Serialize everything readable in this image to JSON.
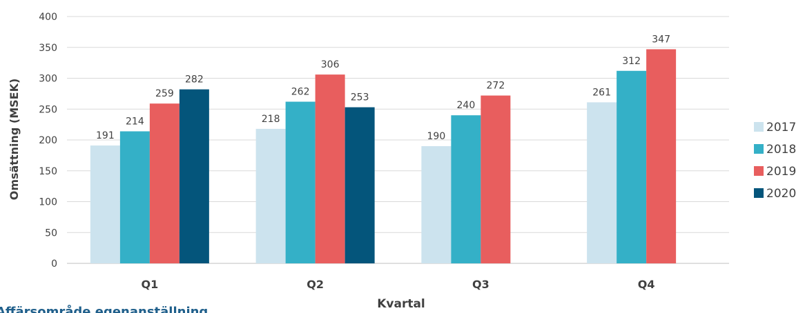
{
  "caption": "Affärsområde egenanställning",
  "chart_data": {
    "type": "bar",
    "categories": [
      "Q1",
      "Q2",
      "Q3",
      "Q4"
    ],
    "series": [
      {
        "name": "2017",
        "color": "#cce3ee",
        "values": [
          191,
          218,
          190,
          261
        ]
      },
      {
        "name": "2018",
        "color": "#34b0c7",
        "values": [
          214,
          262,
          240,
          312
        ]
      },
      {
        "name": "2019",
        "color": "#e85e5e",
        "values": [
          259,
          306,
          272,
          347
        ]
      },
      {
        "name": "2020",
        "color": "#04557b",
        "values": [
          282,
          253,
          null,
          null
        ]
      }
    ],
    "xlabel": "Kvartal",
    "ylabel": "Omsättning (MSEK)",
    "ylim": [
      0,
      400
    ],
    "yticks": [
      0,
      50,
      100,
      150,
      200,
      250,
      300,
      350,
      400
    ],
    "grid": true,
    "legend": "right"
  }
}
